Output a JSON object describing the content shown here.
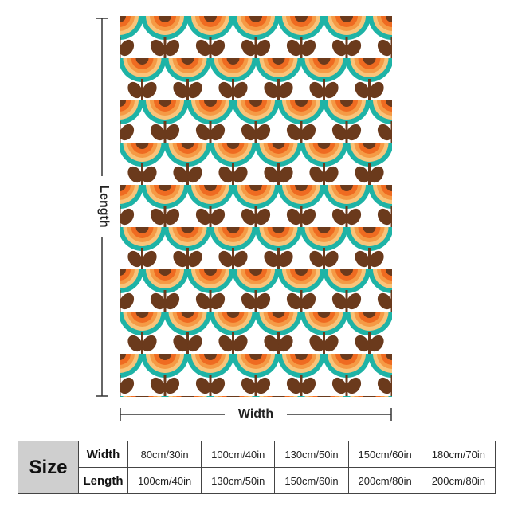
{
  "product": {
    "image": "retro orange, teal and brown flower pattern throw blanket",
    "colors": {
      "teal": "#1eb3a6",
      "orange_dark": "#ef6b21",
      "orange_mid": "#f59a45",
      "orange_light": "#f8c47a",
      "brown": "#6b3a1c",
      "white": "#ffffff"
    }
  },
  "dimensions": {
    "length_label": "Length",
    "width_label": "Width"
  },
  "size_table": {
    "header": "Size",
    "width_label": "Width",
    "length_label": "Length",
    "widths": [
      "80cm/30in",
      "100cm/40in",
      "130cm/50in",
      "150cm/60in",
      "180cm/70in"
    ],
    "lengths": [
      "100cm/40in",
      "130cm/50in",
      "150cm/60in",
      "200cm/80in",
      "200cm/80in"
    ]
  }
}
